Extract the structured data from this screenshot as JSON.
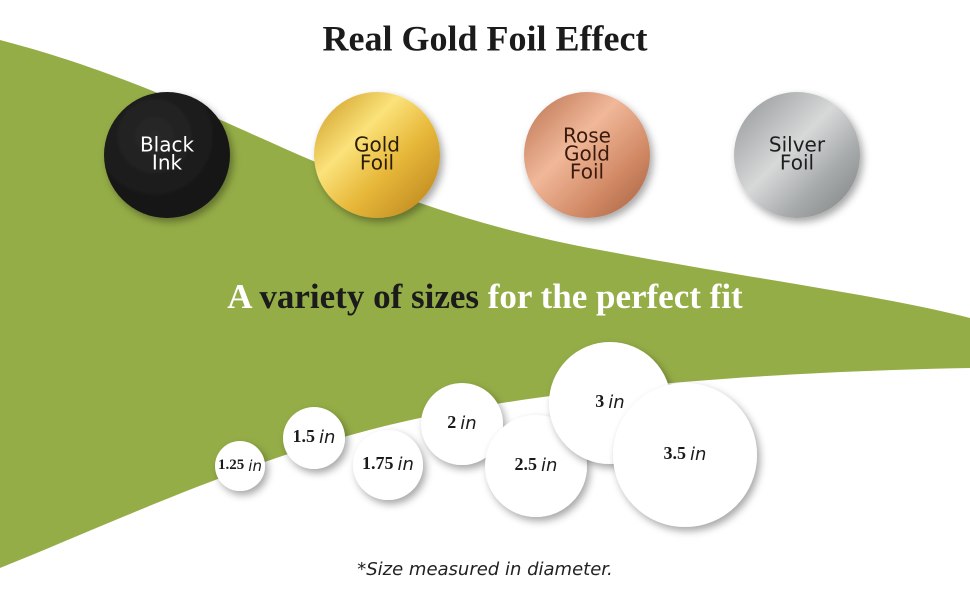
{
  "title": "Real Gold Foil Effect",
  "foils": [
    {
      "lines": [
        "Black",
        "Ink"
      ]
    },
    {
      "lines": [
        "Gold",
        "Foil"
      ]
    },
    {
      "lines": [
        "Rose",
        "Gold",
        "Foil"
      ]
    },
    {
      "lines": [
        "Silver",
        "Foil"
      ]
    }
  ],
  "subtitle": [
    "A",
    "variety of sizes",
    "for the perfect fit"
  ],
  "sizes": [
    {
      "number": "1.25",
      "unit": "in"
    },
    {
      "number": "1.5",
      "unit": "in"
    },
    {
      "number": "1.75",
      "unit": "in"
    },
    {
      "number": "2",
      "unit": "in"
    },
    {
      "number": "2.5",
      "unit": "in"
    },
    {
      "number": "3",
      "unit": "in"
    },
    {
      "number": "3.5",
      "unit": "in"
    }
  ],
  "footnote": "*Size measured in diameter."
}
